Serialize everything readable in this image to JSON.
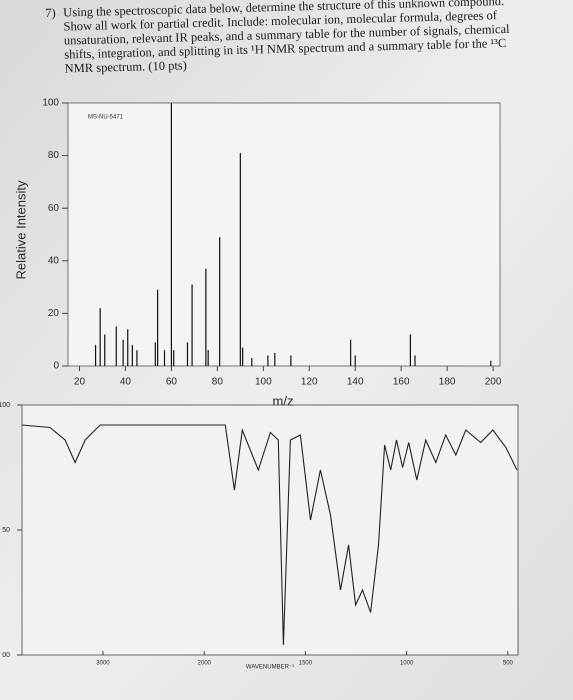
{
  "question": {
    "number": "7)",
    "lines": [
      "Using the spectroscopic data below, determine the structure of this unknown compound.",
      "Show all work for partial credit. Include: molecular ion, molecular formula, degrees of",
      "unsaturation, relevant IR peaks, and a summary table for the number of signals, chemical",
      "shifts, integration, and splitting in its ¹H NMR spectrum and a summary table for the ¹³C",
      "NMR spectrum. (10 pts)"
    ]
  },
  "chart_data": [
    {
      "type": "bar",
      "annotation": "MS-NU-5471",
      "ylabel": "Relative Intensity",
      "xlabel": "m/z",
      "color": "#111111",
      "x": [
        27,
        29,
        31,
        36,
        39,
        41,
        43,
        45,
        53,
        54,
        57,
        60,
        61,
        67,
        69,
        75,
        76,
        81,
        90,
        91,
        95,
        102,
        105,
        112,
        138,
        140,
        164,
        166,
        199
      ],
      "values": [
        8,
        22,
        12,
        15,
        10,
        14,
        8,
        6,
        9,
        29,
        6,
        100,
        6,
        9,
        31,
        37,
        6,
        49,
        81,
        7,
        3,
        4,
        5,
        4,
        10,
        4,
        12,
        4,
        2
      ],
      "xlim": [
        15,
        203
      ],
      "ylim": [
        0,
        100
      ],
      "xticks": [
        20,
        40,
        60,
        80,
        100,
        120,
        140,
        160,
        180,
        200
      ],
      "yticks": [
        0,
        20,
        40,
        60,
        80,
        100
      ]
    },
    {
      "type": "line",
      "xlabel": "WAVENUMBER⁻¹",
      "color": "#222222",
      "x": [
        3800,
        3523,
        3374,
        3275,
        3176,
        3028,
        2533,
        2038,
        1896,
        1851,
        1812,
        1733,
        1673,
        1634,
        1609,
        1574,
        1525,
        1475,
        1426,
        1376,
        1327,
        1287,
        1252,
        1218,
        1178,
        1139,
        1109,
        1079,
        1050,
        1020,
        990,
        950,
        906,
        856,
        807,
        757,
        708,
        634,
        574,
        510,
        455
      ],
      "values": [
        92,
        91,
        86,
        77,
        86,
        92,
        92,
        92,
        92,
        66,
        90,
        74,
        89,
        86,
        4,
        86,
        88,
        54,
        74,
        56,
        26,
        44,
        20,
        26,
        17,
        44,
        84,
        74,
        86,
        75,
        85,
        70,
        86,
        77,
        88,
        80,
        90,
        85,
        90,
        83,
        74
      ],
      "xlim": [
        3800,
        450
      ],
      "x_scale_break": 2000,
      "ylim": [
        0,
        100
      ],
      "xticks": [
        3000,
        2000,
        1500,
        1000,
        500
      ],
      "yticks": [
        {
          "value": 0,
          "label": "00"
        },
        50,
        100
      ]
    }
  ]
}
